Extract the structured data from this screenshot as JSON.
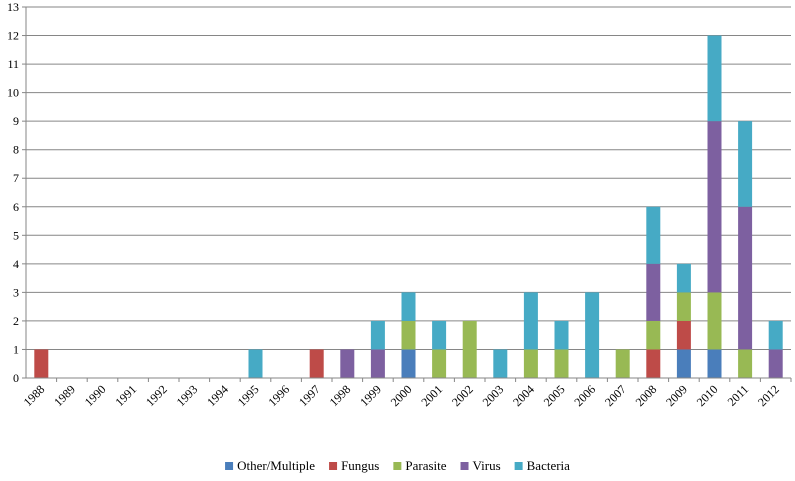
{
  "chart_data": {
    "type": "bar",
    "stacked": true,
    "title": "",
    "xlabel": "",
    "ylabel": "",
    "ylim": [
      0,
      13
    ],
    "yticks": [
      0,
      1,
      2,
      3,
      4,
      5,
      6,
      7,
      8,
      9,
      10,
      11,
      12,
      13
    ],
    "grid": true,
    "legend_position": "bottom",
    "categories": [
      "1988",
      "1989",
      "1990",
      "1991",
      "1992",
      "1993",
      "1994",
      "1995",
      "1996",
      "1997",
      "1998",
      "1999",
      "2000",
      "2001",
      "2002",
      "2003",
      "2004",
      "2005",
      "2006",
      "2007",
      "2008",
      "2009",
      "2010",
      "2011",
      "2012"
    ],
    "series": [
      {
        "name": "Other/Multiple",
        "color": "#4a7ebb",
        "values": [
          0,
          0,
          0,
          0,
          0,
          0,
          0,
          0,
          0,
          0,
          0,
          0,
          1,
          0,
          0,
          0,
          0,
          0,
          0,
          0,
          0,
          1,
          1,
          0,
          0
        ]
      },
      {
        "name": "Fungus",
        "color": "#be4b48",
        "values": [
          1,
          0,
          0,
          0,
          0,
          0,
          0,
          0,
          0,
          1,
          0,
          0,
          0,
          0,
          0,
          0,
          0,
          0,
          0,
          0,
          1,
          1,
          0,
          0,
          0
        ]
      },
      {
        "name": "Parasite",
        "color": "#98b954",
        "values": [
          0,
          0,
          0,
          0,
          0,
          0,
          0,
          0,
          0,
          0,
          0,
          0,
          1,
          1,
          2,
          0,
          1,
          1,
          0,
          1,
          1,
          1,
          2,
          1,
          0
        ]
      },
      {
        "name": "Virus",
        "color": "#7d60a0",
        "values": [
          0,
          0,
          0,
          0,
          0,
          0,
          0,
          0,
          0,
          0,
          1,
          1,
          0,
          0,
          0,
          0,
          0,
          0,
          0,
          0,
          2,
          0,
          6,
          5,
          1
        ]
      },
      {
        "name": "Bacteria",
        "color": "#46aac5",
        "values": [
          0,
          0,
          0,
          0,
          0,
          0,
          0,
          1,
          0,
          0,
          0,
          1,
          1,
          1,
          0,
          1,
          2,
          1,
          3,
          0,
          2,
          1,
          3,
          3,
          1
        ]
      }
    ]
  }
}
